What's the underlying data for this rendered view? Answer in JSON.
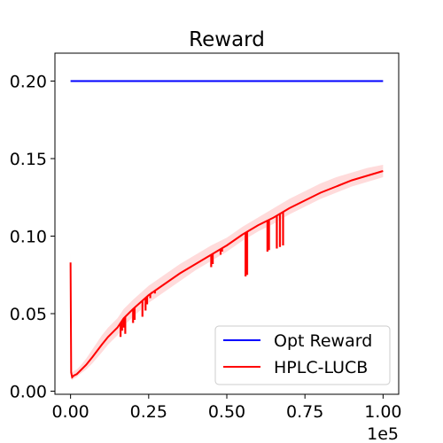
{
  "chart_data": {
    "type": "line",
    "title": "Reward",
    "xlabel": "",
    "ylabel": "",
    "x_offset_label": "1e5",
    "xlim": [
      -0.05,
      1.05
    ],
    "ylim": [
      -0.002,
      0.218
    ],
    "xticks": [
      0.0,
      0.25,
      0.5,
      0.75,
      1.0
    ],
    "xtick_labels": [
      "0.00",
      "0.25",
      "0.50",
      "0.75",
      "1.00"
    ],
    "yticks": [
      0.0,
      0.05,
      0.1,
      0.15,
      0.2
    ],
    "ytick_labels": [
      "0.00",
      "0.05",
      "0.10",
      "0.15",
      "0.20"
    ],
    "grid": false,
    "legend_position": "lower-right",
    "series": [
      {
        "name": "Opt Reward",
        "color": "#0000ff",
        "x": [
          0.0,
          1.0
        ],
        "y": [
          0.2,
          0.2
        ]
      },
      {
        "name": "HPLC-LUCB",
        "color": "#ff0000",
        "band_color": "#ffcccc",
        "x": [
          0.0,
          0.002,
          0.005,
          0.01,
          0.02,
          0.03,
          0.05,
          0.07,
          0.1,
          0.12,
          0.15,
          0.17,
          0.2,
          0.25,
          0.3,
          0.35,
          0.4,
          0.45,
          0.5,
          0.55,
          0.6,
          0.65,
          0.7,
          0.75,
          0.8,
          0.85,
          0.9,
          0.95,
          1.0
        ],
        "y": [
          0.083,
          0.012,
          0.009,
          0.01,
          0.011,
          0.013,
          0.017,
          0.022,
          0.03,
          0.035,
          0.041,
          0.047,
          0.053,
          0.062,
          0.069,
          0.076,
          0.082,
          0.088,
          0.094,
          0.101,
          0.107,
          0.112,
          0.118,
          0.123,
          0.128,
          0.132,
          0.136,
          0.139,
          0.142
        ],
        "lower": [
          0.083,
          0.009,
          0.007,
          0.008,
          0.009,
          0.011,
          0.014,
          0.018,
          0.025,
          0.03,
          0.036,
          0.042,
          0.048,
          0.057,
          0.064,
          0.071,
          0.078,
          0.084,
          0.09,
          0.097,
          0.103,
          0.108,
          0.114,
          0.119,
          0.124,
          0.128,
          0.132,
          0.135,
          0.138
        ],
        "upper": [
          0.089,
          0.015,
          0.012,
          0.013,
          0.014,
          0.016,
          0.021,
          0.027,
          0.036,
          0.041,
          0.047,
          0.053,
          0.059,
          0.068,
          0.075,
          0.082,
          0.088,
          0.094,
          0.099,
          0.106,
          0.112,
          0.118,
          0.124,
          0.129,
          0.134,
          0.138,
          0.141,
          0.144,
          0.146
        ],
        "dips": [
          {
            "x": 0.16,
            "y": 0.035
          },
          {
            "x": 0.165,
            "y": 0.039
          },
          {
            "x": 0.17,
            "y": 0.041
          },
          {
            "x": 0.175,
            "y": 0.037
          },
          {
            "x": 0.2,
            "y": 0.044
          },
          {
            "x": 0.205,
            "y": 0.046
          },
          {
            "x": 0.23,
            "y": 0.048
          },
          {
            "x": 0.24,
            "y": 0.052
          },
          {
            "x": 0.245,
            "y": 0.056
          },
          {
            "x": 0.255,
            "y": 0.06
          },
          {
            "x": 0.26,
            "y": 0.064
          },
          {
            "x": 0.27,
            "y": 0.063
          },
          {
            "x": 0.45,
            "y": 0.08
          },
          {
            "x": 0.455,
            "y": 0.082
          },
          {
            "x": 0.48,
            "y": 0.088
          },
          {
            "x": 0.485,
            "y": 0.09
          },
          {
            "x": 0.56,
            "y": 0.074
          },
          {
            "x": 0.565,
            "y": 0.075
          },
          {
            "x": 0.63,
            "y": 0.09
          },
          {
            "x": 0.635,
            "y": 0.091
          },
          {
            "x": 0.66,
            "y": 0.092
          },
          {
            "x": 0.67,
            "y": 0.093
          },
          {
            "x": 0.68,
            "y": 0.094
          }
        ]
      }
    ]
  }
}
